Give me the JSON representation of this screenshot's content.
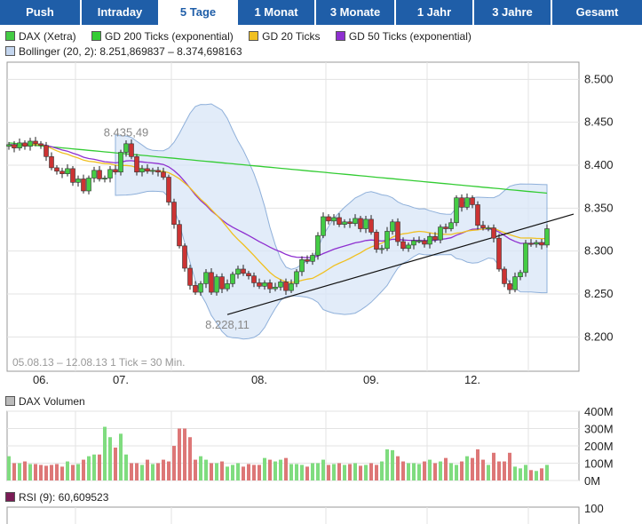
{
  "tabs": [
    {
      "label": "Push",
      "active": false
    },
    {
      "label": "Intraday",
      "active": false
    },
    {
      "label": "5 Tage",
      "active": true
    },
    {
      "label": "1 Monat",
      "active": false
    },
    {
      "label": "3 Monate",
      "active": false
    },
    {
      "label": "1 Jahr",
      "active": false
    },
    {
      "label": "3 Jahre",
      "active": false
    },
    {
      "label": "Gesamt",
      "active": false
    }
  ],
  "colors": {
    "tab_bg": "#1f5ea8",
    "up": "#44cc44",
    "down": "#cc3333",
    "gd200": "#33cc33",
    "gd20": "#f0c020",
    "gd50": "#8e2fd0",
    "bollinger": "#d8e6f7"
  },
  "legend": {
    "dax": "DAX (Xetra)",
    "gd200": "GD 200 Ticks (exponential)",
    "gd20": "GD 20 Ticks",
    "gd50": "GD 50 Ticks (exponential)",
    "bollinger": "Bollinger (20, 2): 8.251,869837 – 8.374,698163",
    "volume": "DAX Volumen",
    "rsi": "RSI (9): 60,609523"
  },
  "chart_data": [
    {
      "type": "candlestick",
      "ylim": [
        8160,
        8520
      ],
      "yticks": [
        "8.500",
        "8.450",
        "8.400",
        "8.350",
        "8.300",
        "8.250",
        "8.200"
      ],
      "xticks": [
        "06.",
        "07.",
        "08.",
        "09.",
        "12."
      ],
      "info": "05.08.13 – 12.08.13    1 Tick = 30 Min.",
      "annotations": [
        {
          "text": "8.435,49",
          "value": 8435.49
        },
        {
          "text": "8.228,11",
          "value": 8228.11
        }
      ],
      "close": [
        8424,
        8420,
        8426,
        8422,
        8428,
        8425,
        8423,
        8410,
        8397,
        8393,
        8390,
        8396,
        8380,
        8384,
        8370,
        8385,
        8394,
        8384,
        8385,
        8395,
        8392,
        8415,
        8425,
        8410,
        8392,
        8396,
        8393,
        8394,
        8392,
        8386,
        8357,
        8331,
        8306,
        8280,
        8260,
        8252,
        8262,
        8275,
        8252,
        8270,
        8256,
        8262,
        8273,
        8279,
        8274,
        8271,
        8263,
        8259,
        8263,
        8256,
        8258,
        8264,
        8254,
        8262,
        8276,
        8290,
        8288,
        8295,
        8318,
        8340,
        8335,
        8339,
        8331,
        8334,
        8332,
        8338,
        8326,
        8337,
        8322,
        8302,
        8303,
        8323,
        8334,
        8311,
        8303,
        8307,
        8312,
        8312,
        8308,
        8317,
        8313,
        8328,
        8326,
        8333,
        8362,
        8351,
        8362,
        8354,
        8330,
        8327,
        8327,
        8315,
        8279,
        8262,
        8255,
        8270,
        8275,
        8309,
        8308,
        8310,
        8307,
        8326
      ]
    },
    {
      "type": "bar",
      "title": "DAX Volumen",
      "ylim": [
        0,
        400
      ],
      "yticks": [
        "400M",
        "300M",
        "200M",
        "100M",
        "0M"
      ],
      "values": [
        140,
        100,
        100,
        110,
        95,
        95,
        90,
        85,
        90,
        95,
        80,
        110,
        90,
        95,
        120,
        140,
        150,
        150,
        310,
        250,
        190,
        270,
        150,
        100,
        100,
        90,
        120,
        95,
        100,
        120,
        110,
        200,
        300,
        300,
        250,
        120,
        140,
        120,
        100,
        100,
        110,
        80,
        90,
        100,
        80,
        95,
        90,
        90,
        130,
        120,
        110,
        120,
        130,
        95,
        95,
        90,
        80,
        100,
        100,
        120,
        90,
        95,
        100,
        90,
        95,
        100,
        85,
        90,
        100,
        90,
        110,
        180,
        175,
        140,
        110,
        100,
        100,
        95,
        110,
        120,
        100,
        110,
        130,
        100,
        90,
        110,
        140,
        130,
        180,
        120,
        90,
        160,
        110,
        110,
        160,
        80,
        70,
        90,
        60,
        55,
        70,
        90
      ]
    },
    {
      "type": "line",
      "title": "RSI (9)",
      "ylim": [
        0,
        100
      ],
      "yticks": [
        "100"
      ],
      "values": []
    }
  ]
}
